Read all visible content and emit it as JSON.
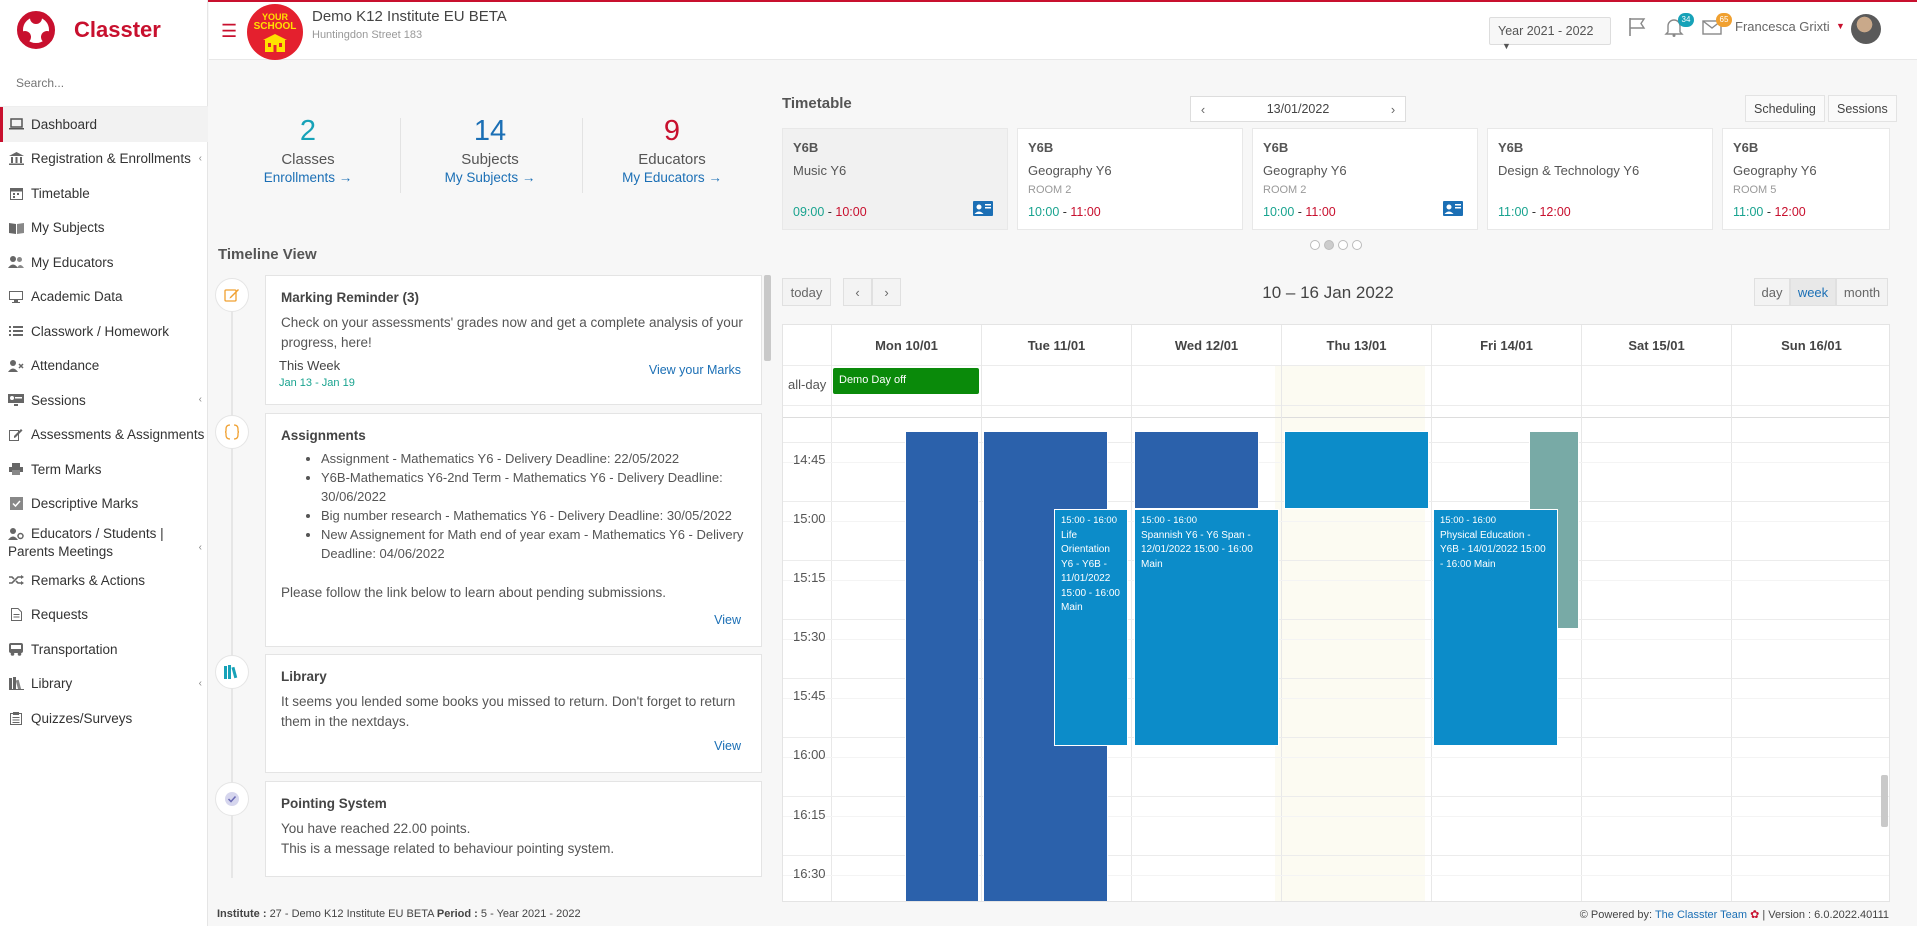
{
  "app": {
    "name": "Classter"
  },
  "sidebar": {
    "search_placeholder": "Search...",
    "items": [
      {
        "label": "Dashboard"
      },
      {
        "label": "Registration & Enrollments"
      },
      {
        "label": "Timetable"
      },
      {
        "label": "My Subjects"
      },
      {
        "label": "My Educators"
      },
      {
        "label": "Academic Data"
      },
      {
        "label": "Classwork / Homework"
      },
      {
        "label": "Attendance"
      },
      {
        "label": "Sessions"
      },
      {
        "label": "Assessments & Assignments"
      },
      {
        "label": "Term Marks"
      },
      {
        "label": "Descriptive Marks"
      },
      {
        "label": "Educators / Students | Parents Meetings"
      },
      {
        "label": "Remarks & Actions"
      },
      {
        "label": "Requests"
      },
      {
        "label": "Transportation"
      },
      {
        "label": "Library"
      },
      {
        "label": "Quizzes/Surveys"
      }
    ]
  },
  "header": {
    "school_badge_top": "YOUR",
    "school_badge_mid": "SCHOOL",
    "institute_name": "Demo K12 Institute EU BETA",
    "institute_address": "Huntingdon Street 183",
    "year_select": "Year 2021 - 2022",
    "notifications_count": "34",
    "messages_count": "65",
    "user_name": "Francesca Grixti"
  },
  "stats": [
    {
      "number": "2",
      "label": "Classes",
      "link": "Enrollments",
      "color": "#17a2b8"
    },
    {
      "number": "14",
      "label": "Subjects",
      "link": "My Subjects",
      "color": "#1b6fb5"
    },
    {
      "number": "9",
      "label": "Educators",
      "link": "My Educators",
      "color": "#c8102e"
    }
  ],
  "timeline": {
    "title": "Timeline View",
    "cards": [
      {
        "title": "Marking Reminder (3)",
        "text": "Check on your assessments' grades now and get a complete analysis of your progress, here!",
        "period": "This Week",
        "range": "Jan 13 - Jan 19",
        "link": "View your Marks"
      },
      {
        "title": "Assignments",
        "items": [
          "Assignment - Mathematics Y6 - Delivery Deadline: 22/05/2022",
          "Y6B-Mathematics Y6-2nd Term - Mathematics Y6 - Delivery Deadline: 30/06/2022",
          "Big number research - Mathematics Y6 - Delivery Deadline: 30/05/2022",
          "New Assignement for Math end of year exam - Mathematics Y6 - Delivery Deadline: 04/06/2022"
        ],
        "text": "Please follow the link below to learn about pending submissions.",
        "link": "View"
      },
      {
        "title": "Library",
        "text": "It seems you lended some books you missed to return. Don't forget to return them in the nextdays.",
        "link": "View"
      },
      {
        "title": "Pointing System",
        "text": "You have reached 22.00 points.",
        "text2": "This is a message related to behaviour pointing system."
      }
    ]
  },
  "timetable": {
    "title": "Timetable",
    "date": "13/01/2022",
    "tabs": [
      "Scheduling",
      "Sessions"
    ],
    "cards": [
      {
        "class": "Y6B",
        "subject": "Music Y6",
        "room": "",
        "start": "09:00",
        "end": "10:00",
        "video": true
      },
      {
        "class": "Y6B",
        "subject": "Geography Y6",
        "room": "ROOM 2",
        "start": "10:00",
        "end": "11:00",
        "video": false
      },
      {
        "class": "Y6B",
        "subject": "Geography Y6",
        "room": "ROOM 2",
        "start": "10:00",
        "end": "11:00",
        "video": true
      },
      {
        "class": "Y6B",
        "subject": "Design & Technology Y6",
        "room": "",
        "start": "11:00",
        "end": "12:00",
        "video": false
      },
      {
        "class": "Y6B",
        "subject": "Geography Y6",
        "room": "ROOM 5",
        "start": "11:00",
        "end": "12:00",
        "video": false
      }
    ]
  },
  "calendar": {
    "today_btn": "today",
    "prev": "‹",
    "next": "›",
    "range_title": "10 – 16 Jan 2022",
    "views": [
      "day",
      "week",
      "month"
    ],
    "active_view": "week",
    "days": [
      "Mon 10/01",
      "Tue 11/01",
      "Wed 12/01",
      "Thu 13/01",
      "Fri 14/01",
      "Sat 15/01",
      "Sun 16/01"
    ],
    "allday_label": "all-day",
    "allday_event": "Demo Day off",
    "times": [
      "14:45",
      "15:00",
      "15:15",
      "15:30",
      "15:45",
      "16:00",
      "16:15",
      "16:30"
    ],
    "events": [
      {
        "time": "15:00 - 16:00",
        "text": "Life Orientation Y6 - Y6B - 11/01/2022 15:00 - 16:00 Main"
      },
      {
        "time": "15:00 - 16:00",
        "text": "Spannish Y6 - Y6 Span - 12/01/2022 15:00 - 16:00 Main"
      },
      {
        "time": "15:00 - 16:00",
        "text": "Physical Education - Y6B - 14/01/2022 15:00 - 16:00 Main"
      }
    ]
  },
  "footer": {
    "institute_label": "Institute :",
    "institute_value": "27 - Demo K12 Institute EU BETA",
    "period_label": "Period :",
    "period_value": "5 - Year 2021 - 2022",
    "powered_label": "Powered by:",
    "powered_team": "The Classter Team",
    "version": "| Version : 6.0.2022.40111"
  },
  "colors": {
    "brand_red": "#c8102e",
    "event_dark_blue": "#2b61ab",
    "event_light_blue": "#0c8cc9",
    "event_teal": "#78aaa6",
    "allday_green": "#0a8a0a"
  }
}
